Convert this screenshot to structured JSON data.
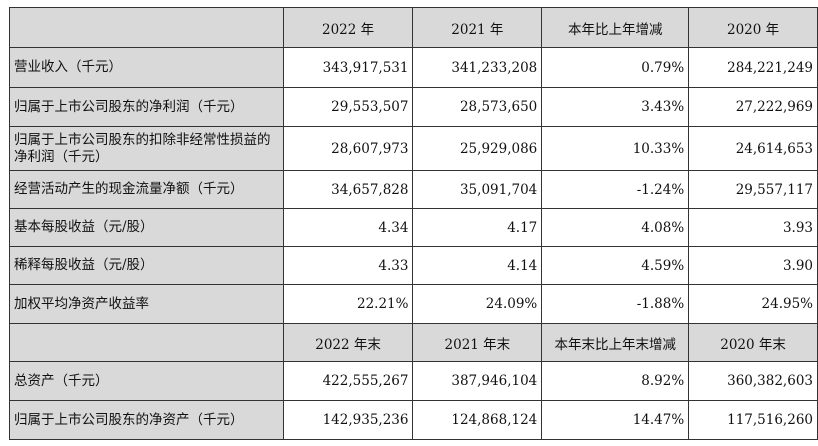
{
  "header1": [
    "2022 年",
    "2021 年",
    "本年比上年增减",
    "2020 年"
  ],
  "rows1": [
    {
      "label": "营业收入（千元）",
      "values": [
        "343,917,531",
        "341,233,208",
        "0.79%",
        "284,221,249"
      ]
    },
    {
      "label": "归属于上市公司股东的净利润（千元）",
      "values": [
        "29,553,507",
        "28,573,650",
        "3.43%",
        "27,222,969"
      ]
    },
    {
      "label": "归属于上市公司股东的扣除非经常性损益的净利润（千元）",
      "values": [
        "28,607,973",
        "25,929,086",
        "10.33%",
        "24,614,653"
      ]
    },
    {
      "label": "经营活动产生的现金流量净额（千元）",
      "values": [
        "34,657,828",
        "35,091,704",
        "-1.24%",
        "29,557,117"
      ]
    },
    {
      "label": "基本每股收益（元/股）",
      "values": [
        "4.34",
        "4.17",
        "4.08%",
        "3.93"
      ]
    },
    {
      "label": "稀释每股收益（元/股）",
      "values": [
        "4.33",
        "4.14",
        "4.59%",
        "3.90"
      ]
    },
    {
      "label": "加权平均净资产收益率",
      "values": [
        "22.21%",
        "24.09%",
        "-1.88%",
        "24.95%"
      ]
    }
  ],
  "header2": [
    "2022 年末",
    "2021 年末",
    "本年末比上年末增减",
    "2020 年末"
  ],
  "rows2": [
    {
      "label": "总资产（千元）",
      "values": [
        "422,555,267",
        "387,946,104",
        "8.92%",
        "360,382,603"
      ]
    },
    {
      "label": "归属于上市公司股东的净资产（千元）",
      "values": [
        "142,935,236",
        "124,868,124",
        "14.47%",
        "117,516,260"
      ]
    }
  ]
}
